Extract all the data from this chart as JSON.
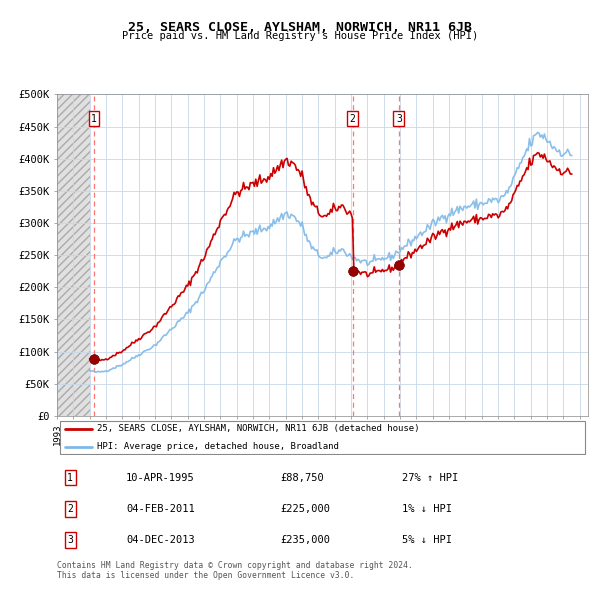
{
  "title": "25, SEARS CLOSE, AYLSHAM, NORWICH, NR11 6JB",
  "subtitle": "Price paid vs. HM Land Registry's House Price Index (HPI)",
  "hpi_color": "#7fb8e8",
  "price_color": "#cc0000",
  "vline_color": "#ff6666",
  "legend_label_price": "25, SEARS CLOSE, AYLSHAM, NORWICH, NR11 6JB (detached house)",
  "legend_label_hpi": "HPI: Average price, detached house, Broadland",
  "transactions": [
    {
      "label": "1",
      "date_num": 1995.27,
      "price": 88750
    },
    {
      "label": "2",
      "date_num": 2011.09,
      "price": 225000
    },
    {
      "label": "3",
      "date_num": 2013.92,
      "price": 235000
    }
  ],
  "transaction_table": [
    {
      "num": "1",
      "date": "10-APR-1995",
      "price": "£88,750",
      "hpi": "27% ↑ HPI"
    },
    {
      "num": "2",
      "date": "04-FEB-2011",
      "price": "£225,000",
      "hpi": "1% ↓ HPI"
    },
    {
      "num": "3",
      "date": "04-DEC-2013",
      "price": "£235,000",
      "hpi": "5% ↓ HPI"
    }
  ],
  "footer": "Contains HM Land Registry data © Crown copyright and database right 2024.\nThis data is licensed under the Open Government Licence v3.0.",
  "ylim": [
    0,
    500000
  ],
  "yticks": [
    0,
    50000,
    100000,
    150000,
    200000,
    250000,
    300000,
    350000,
    400000,
    450000,
    500000
  ],
  "ytick_labels": [
    "£0",
    "£50K",
    "£100K",
    "£150K",
    "£200K",
    "£250K",
    "£300K",
    "£350K",
    "£400K",
    "£450K",
    "£500K"
  ],
  "xlim": [
    1993.0,
    2025.5
  ],
  "xticks": [
    1993,
    1994,
    1995,
    1996,
    1997,
    1998,
    1999,
    2000,
    2001,
    2002,
    2003,
    2004,
    2005,
    2006,
    2007,
    2008,
    2009,
    2010,
    2011,
    2012,
    2013,
    2014,
    2015,
    2016,
    2017,
    2018,
    2019,
    2020,
    2021,
    2022,
    2023,
    2024,
    2025
  ],
  "hatch_end": 1995.0
}
